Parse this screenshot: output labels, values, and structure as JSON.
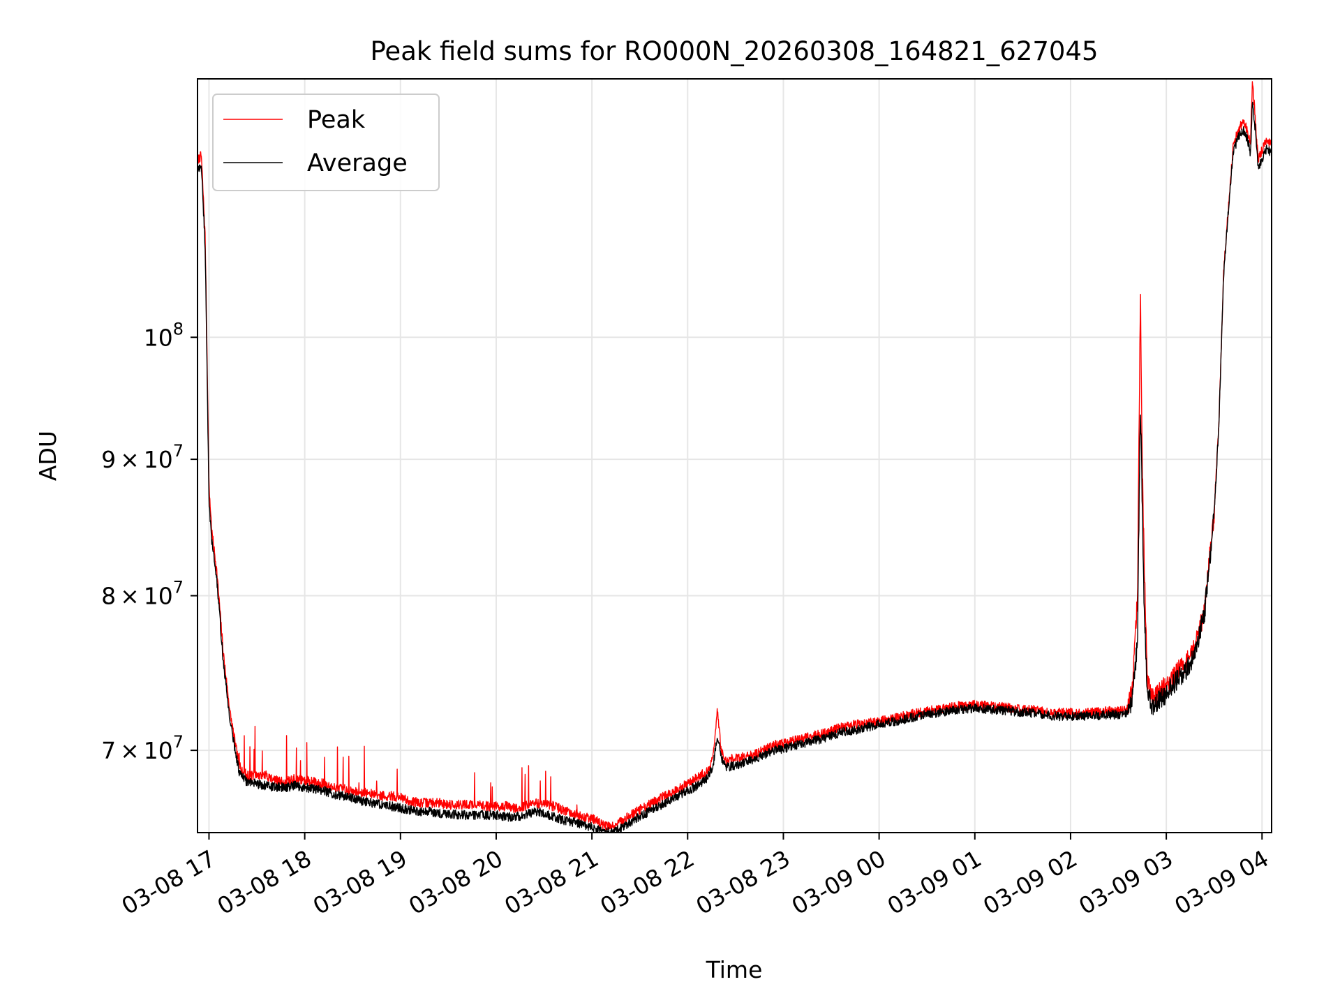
{
  "chart_data": {
    "type": "line",
    "title": "Peak field sums for RO000N_20260308_164821_627045",
    "xlabel": "Time",
    "ylabel": "ADU",
    "yscale": "log",
    "ylim": [
      65200000,
      125000000
    ],
    "xlim_hours": [
      16.88,
      28.1
    ],
    "grid": true,
    "legend_position": "upper-left",
    "legend": [
      {
        "name": "Peak",
        "color": "#ff0000"
      },
      {
        "name": "Average",
        "color": "#000000"
      }
    ],
    "x_ticks": [
      {
        "hour": 17,
        "label": "03-08 17"
      },
      {
        "hour": 18,
        "label": "03-08 18"
      },
      {
        "hour": 19,
        "label": "03-08 19"
      },
      {
        "hour": 20,
        "label": "03-08 20"
      },
      {
        "hour": 21,
        "label": "03-08 21"
      },
      {
        "hour": 22,
        "label": "03-08 22"
      },
      {
        "hour": 23,
        "label": "03-08 23"
      },
      {
        "hour": 24,
        "label": "03-09 00"
      },
      {
        "hour": 25,
        "label": "03-09 01"
      },
      {
        "hour": 26,
        "label": "03-09 02"
      },
      {
        "hour": 27,
        "label": "03-09 03"
      },
      {
        "hour": 28,
        "label": "03-09 04"
      }
    ],
    "y_ticks": [
      {
        "value": 70000000,
        "mant": "7",
        "times": "×",
        "base": "10",
        "exp": "7"
      },
      {
        "value": 80000000,
        "mant": "8",
        "times": "×",
        "base": "10",
        "exp": "7"
      },
      {
        "value": 90000000,
        "mant": "9",
        "times": "×",
        "base": "10",
        "exp": "7"
      },
      {
        "value": 100000000,
        "mant": "",
        "times": "",
        "base": "10",
        "exp": "8"
      }
    ],
    "series": [
      {
        "name": "Peak",
        "color": "#ff0000",
        "x": [
          16.88,
          16.92,
          16.96,
          17.0,
          17.03,
          17.08,
          17.15,
          17.22,
          17.28,
          17.32,
          17.4,
          17.5,
          17.6,
          17.7,
          17.8,
          17.9,
          18.0,
          18.1,
          18.2,
          18.3,
          18.4,
          18.5,
          18.6,
          18.7,
          18.8,
          18.9,
          19.0,
          19.1,
          19.2,
          19.3,
          19.4,
          19.5,
          19.6,
          19.7,
          19.8,
          19.9,
          20.0,
          20.1,
          20.2,
          20.3,
          20.4,
          20.5,
          20.6,
          20.7,
          20.8,
          20.9,
          21.0,
          21.1,
          21.2,
          21.3,
          21.4,
          21.5,
          21.6,
          21.7,
          21.8,
          21.9,
          22.0,
          22.1,
          22.2,
          22.25,
          22.28,
          22.31,
          22.35,
          22.4,
          22.5,
          22.6,
          22.7,
          22.8,
          22.9,
          23.0,
          23.2,
          23.4,
          23.6,
          23.8,
          24.0,
          24.2,
          24.4,
          24.6,
          24.8,
          25.0,
          25.2,
          25.4,
          25.6,
          25.8,
          26.0,
          26.2,
          26.4,
          26.5,
          26.6,
          26.65,
          26.7,
          26.73,
          26.75,
          26.77,
          26.8,
          26.85,
          26.9,
          27.0,
          27.1,
          27.2,
          27.25,
          27.3,
          27.4,
          27.5,
          27.55,
          27.6,
          27.65,
          27.7,
          27.75,
          27.8,
          27.85,
          27.88,
          27.9,
          27.93,
          27.96,
          28.0,
          28.05,
          28.1
        ],
        "y": [
          116500000,
          117000000,
          109000000,
          87900000,
          84500000,
          81800000,
          76100000,
          72300000,
          70200000,
          69000000,
          68500000,
          68500000,
          68500000,
          68200000,
          68100000,
          68300000,
          68200000,
          68100000,
          68000000,
          67800000,
          67700000,
          67600000,
          67500000,
          67400000,
          67300000,
          67300000,
          67200000,
          67000000,
          66900000,
          66900000,
          66900000,
          66800000,
          66800000,
          66800000,
          66800000,
          66700000,
          66700000,
          66700000,
          66600000,
          66700000,
          66900000,
          66800000,
          66700000,
          66500000,
          66300000,
          66100000,
          66000000,
          65700000,
          65500000,
          65800000,
          66200000,
          66500000,
          66800000,
          67100000,
          67400000,
          67700000,
          68000000,
          68400000,
          68700000,
          69200000,
          70200000,
          72600000,
          70000000,
          69400000,
          69500000,
          69600000,
          69800000,
          70000000,
          70300000,
          70400000,
          70700000,
          71000000,
          71400000,
          71600000,
          71800000,
          72000000,
          72300000,
          72500000,
          72700000,
          72800000,
          72700000,
          72600000,
          72500000,
          72300000,
          72300000,
          72300000,
          72400000,
          72400000,
          72500000,
          74000000,
          80000000,
          103500000,
          89000000,
          82000000,
          74500000,
          73200000,
          73500000,
          74000000,
          74800000,
          75500000,
          75800000,
          76500000,
          79000000,
          86000000,
          93000000,
          106000000,
          112000000,
          118000000,
          119500000,
          120500000,
          119500000,
          118000000,
          125000000,
          120500000,
          116500000,
          117500000,
          118500000,
          118000000
        ]
      },
      {
        "name": "Average",
        "color": "#000000",
        "x": [
          16.88,
          16.92,
          16.96,
          17.0,
          17.03,
          17.08,
          17.15,
          17.22,
          17.28,
          17.32,
          17.4,
          17.5,
          17.6,
          17.7,
          17.8,
          17.9,
          18.0,
          18.1,
          18.2,
          18.3,
          18.4,
          18.5,
          18.6,
          18.7,
          18.8,
          18.9,
          19.0,
          19.1,
          19.2,
          19.3,
          19.4,
          19.5,
          19.6,
          19.7,
          19.8,
          19.9,
          20.0,
          20.1,
          20.2,
          20.3,
          20.4,
          20.5,
          20.6,
          20.7,
          20.8,
          20.9,
          21.0,
          21.1,
          21.2,
          21.3,
          21.4,
          21.5,
          21.6,
          21.7,
          21.8,
          21.9,
          22.0,
          22.1,
          22.2,
          22.25,
          22.28,
          22.31,
          22.35,
          22.4,
          22.5,
          22.6,
          22.7,
          22.8,
          22.9,
          23.0,
          23.2,
          23.4,
          23.6,
          23.8,
          24.0,
          24.2,
          24.4,
          24.6,
          24.8,
          25.0,
          25.2,
          25.4,
          25.6,
          25.8,
          26.0,
          26.2,
          26.4,
          26.5,
          26.6,
          26.65,
          26.7,
          26.73,
          26.75,
          26.77,
          26.8,
          26.85,
          26.9,
          27.0,
          27.1,
          27.2,
          27.25,
          27.3,
          27.4,
          27.5,
          27.55,
          27.6,
          27.65,
          27.7,
          27.75,
          27.8,
          27.85,
          27.88,
          27.9,
          27.93,
          27.96,
          28.0,
          28.05,
          28.1
        ],
        "y": [
          115500000,
          116000000,
          108000000,
          86500000,
          83800000,
          81200000,
          75500000,
          71800000,
          69800000,
          68600000,
          68100000,
          68000000,
          67900000,
          67800000,
          67800000,
          67900000,
          67800000,
          67700000,
          67600000,
          67400000,
          67300000,
          67200000,
          67000000,
          66900000,
          66800000,
          66700000,
          66600000,
          66500000,
          66400000,
          66400000,
          66300000,
          66300000,
          66200000,
          66200000,
          66200000,
          66200000,
          66200000,
          66100000,
          66100000,
          66200000,
          66400000,
          66300000,
          66100000,
          65900000,
          65800000,
          65600000,
          65500000,
          65300000,
          65200000,
          65400000,
          65800000,
          66100000,
          66400000,
          66700000,
          67000000,
          67300000,
          67600000,
          67900000,
          68300000,
          68800000,
          69600000,
          71000000,
          69500000,
          69000000,
          69100000,
          69300000,
          69500000,
          69700000,
          70000000,
          70100000,
          70400000,
          70700000,
          71100000,
          71300000,
          71600000,
          71800000,
          72100000,
          72300000,
          72500000,
          72600000,
          72500000,
          72400000,
          72300000,
          72100000,
          72100000,
          72100000,
          72200000,
          72200000,
          72300000,
          73300000,
          77000000,
          94500000,
          86000000,
          79000000,
          73800000,
          72700000,
          73000000,
          73500000,
          74300000,
          75000000,
          75400000,
          76200000,
          78800000,
          85800000,
          92800000,
          105800000,
          111700000,
          117400000,
          118800000,
          119600000,
          118600000,
          117200000,
          122500000,
          119600000,
          115600000,
          116600000,
          117700000,
          117300000
        ]
      }
    ]
  }
}
